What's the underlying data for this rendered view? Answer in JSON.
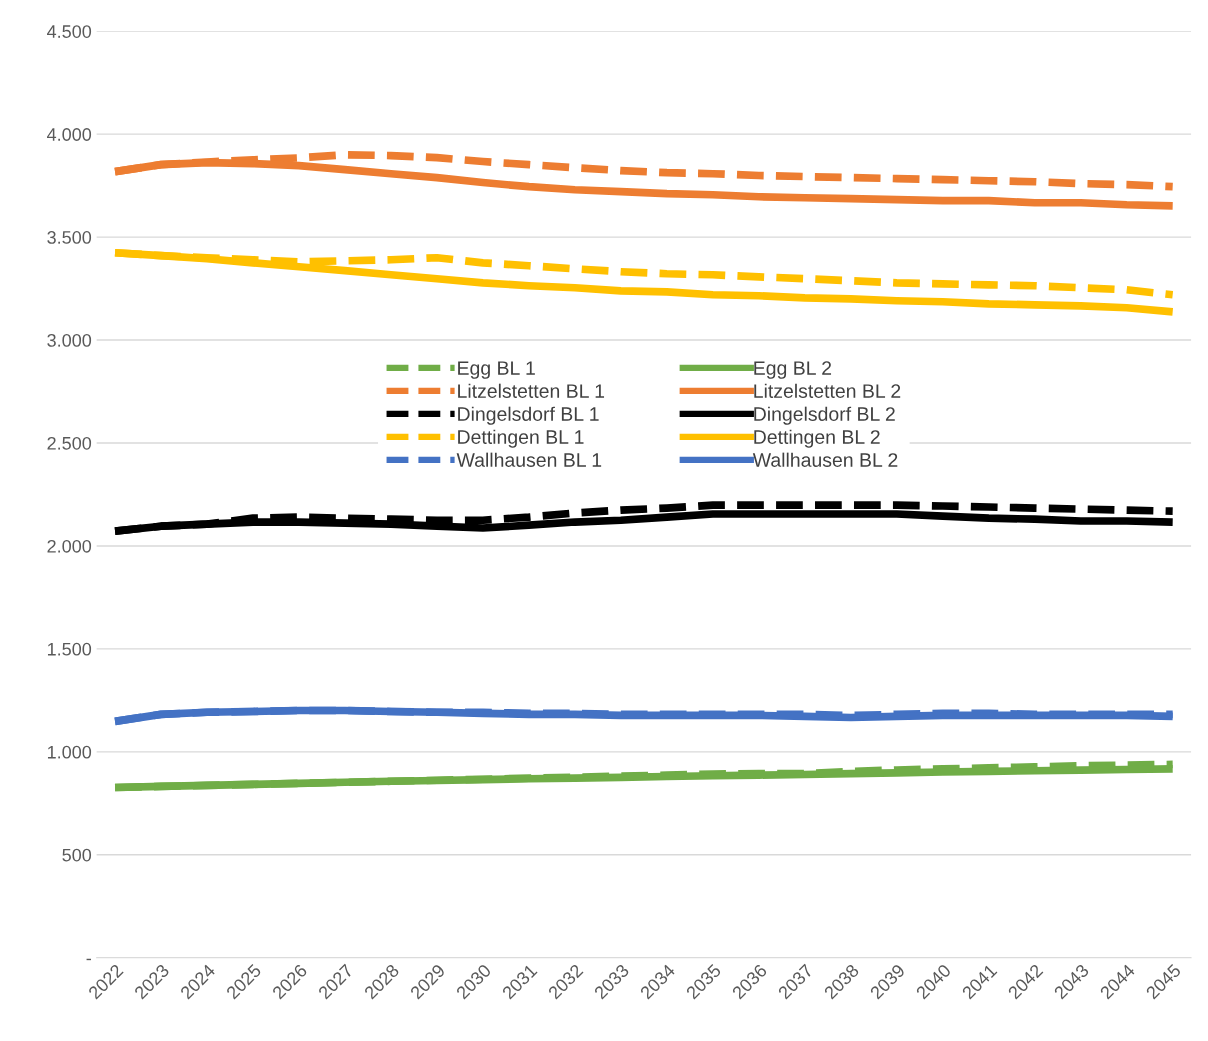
{
  "chart_data": {
    "type": "line",
    "categories": [
      "2022",
      "2023",
      "2024",
      "2025",
      "2026",
      "2027",
      "2028",
      "2029",
      "2030",
      "2031",
      "2032",
      "2033",
      "2034",
      "2035",
      "2036",
      "2037",
      "2038",
      "2039",
      "2040",
      "2041",
      "2042",
      "2043",
      "2044",
      "2045"
    ],
    "ylim": [
      0,
      4500
    ],
    "yticks": [
      {
        "value": 0,
        "label": "-"
      },
      {
        "value": 500,
        "label": "500"
      },
      {
        "value": 1000,
        "label": "1.000"
      },
      {
        "value": 1500,
        "label": "1.500"
      },
      {
        "value": 2000,
        "label": "2.000"
      },
      {
        "value": 2500,
        "label": "2.500"
      },
      {
        "value": 3000,
        "label": "3.000"
      },
      {
        "value": 3500,
        "label": "3.500"
      },
      {
        "value": 4000,
        "label": "4.000"
      },
      {
        "value": 4500,
        "label": "4.500"
      }
    ],
    "grid": "y",
    "legend": "center",
    "marker": "none",
    "series": [
      {
        "name": "Egg BL 1",
        "color": "#70ad47",
        "line_style": "dashed",
        "values": [
          827,
          832,
          837,
          842,
          847,
          852,
          857,
          862,
          867,
          872,
          877,
          882,
          887,
          892,
          895,
          895,
          905,
          912,
          917,
          922,
          927,
          932,
          936,
          939
        ]
      },
      {
        "name": "Egg BL 2",
        "color": "#70ad47",
        "line_style": "solid",
        "values": [
          827,
          832,
          837,
          842,
          847,
          852,
          857,
          861,
          865,
          869,
          872,
          876,
          880,
          884,
          887,
          890,
          894,
          898,
          902,
          905,
          908,
          911,
          914,
          917
        ]
      },
      {
        "name": "Litzelstetten BL 1",
        "color": "#ed7d31",
        "line_style": "dashed",
        "values": [
          3818,
          3852,
          3865,
          3875,
          3885,
          3900,
          3896,
          3886,
          3867,
          3852,
          3837,
          3823,
          3813,
          3808,
          3799,
          3794,
          3789,
          3784,
          3779,
          3774,
          3769,
          3760,
          3755,
          3745
        ]
      },
      {
        "name": "Litzelstetten BL 2",
        "color": "#ed7d31",
        "line_style": "solid",
        "values": [
          3818,
          3852,
          3862,
          3857,
          3847,
          3828,
          3808,
          3789,
          3765,
          3745,
          3730,
          3721,
          3711,
          3706,
          3696,
          3691,
          3687,
          3682,
          3677,
          3677,
          3667,
          3667,
          3657,
          3652
        ]
      },
      {
        "name": "Dingelsdorf BL 1",
        "color": "#000000",
        "line_style": "dashed",
        "values": [
          2072,
          2096,
          2106,
          2135,
          2140,
          2135,
          2130,
          2125,
          2125,
          2140,
          2160,
          2174,
          2184,
          2198,
          2198,
          2198,
          2198,
          2198,
          2194,
          2189,
          2184,
          2179,
          2174,
          2169
        ]
      },
      {
        "name": "Dingelsdorf BL 2",
        "color": "#000000",
        "line_style": "solid",
        "values": [
          2072,
          2096,
          2106,
          2116,
          2116,
          2111,
          2106,
          2096,
          2087,
          2101,
          2116,
          2125,
          2140,
          2155,
          2155,
          2155,
          2155,
          2155,
          2145,
          2135,
          2130,
          2121,
          2121,
          2116
        ]
      },
      {
        "name": "Dettingen BL 1",
        "color": "#ffc000",
        "line_style": "dashed",
        "values": [
          3424,
          3410,
          3400,
          3390,
          3380,
          3385,
          3390,
          3400,
          3375,
          3361,
          3346,
          3332,
          3322,
          3317,
          3307,
          3298,
          3288,
          3278,
          3273,
          3268,
          3264,
          3254,
          3244,
          3220
        ]
      },
      {
        "name": "Dettingen BL 2",
        "color": "#ffc000",
        "line_style": "solid",
        "values": [
          3424,
          3410,
          3395,
          3375,
          3356,
          3337,
          3317,
          3298,
          3278,
          3264,
          3254,
          3239,
          3234,
          3220,
          3215,
          3205,
          3200,
          3191,
          3186,
          3176,
          3171,
          3166,
          3157,
          3137
        ]
      },
      {
        "name": "Wallhausen BL 1",
        "color": "#4472c4",
        "line_style": "dashed",
        "values": [
          1148,
          1182,
          1192,
          1196,
          1201,
          1201,
          1196,
          1192,
          1192,
          1187,
          1187,
          1182,
          1182,
          1182,
          1182,
          1182,
          1177,
          1182,
          1187,
          1187,
          1182,
          1182,
          1182,
          1182
        ]
      },
      {
        "name": "Wallhausen BL 2",
        "color": "#4472c4",
        "line_style": "solid",
        "values": [
          1148,
          1182,
          1192,
          1196,
          1201,
          1201,
          1196,
          1192,
          1187,
          1182,
          1182,
          1177,
          1177,
          1177,
          1177,
          1172,
          1167,
          1172,
          1177,
          1177,
          1177,
          1177,
          1177,
          1172
        ]
      }
    ]
  }
}
